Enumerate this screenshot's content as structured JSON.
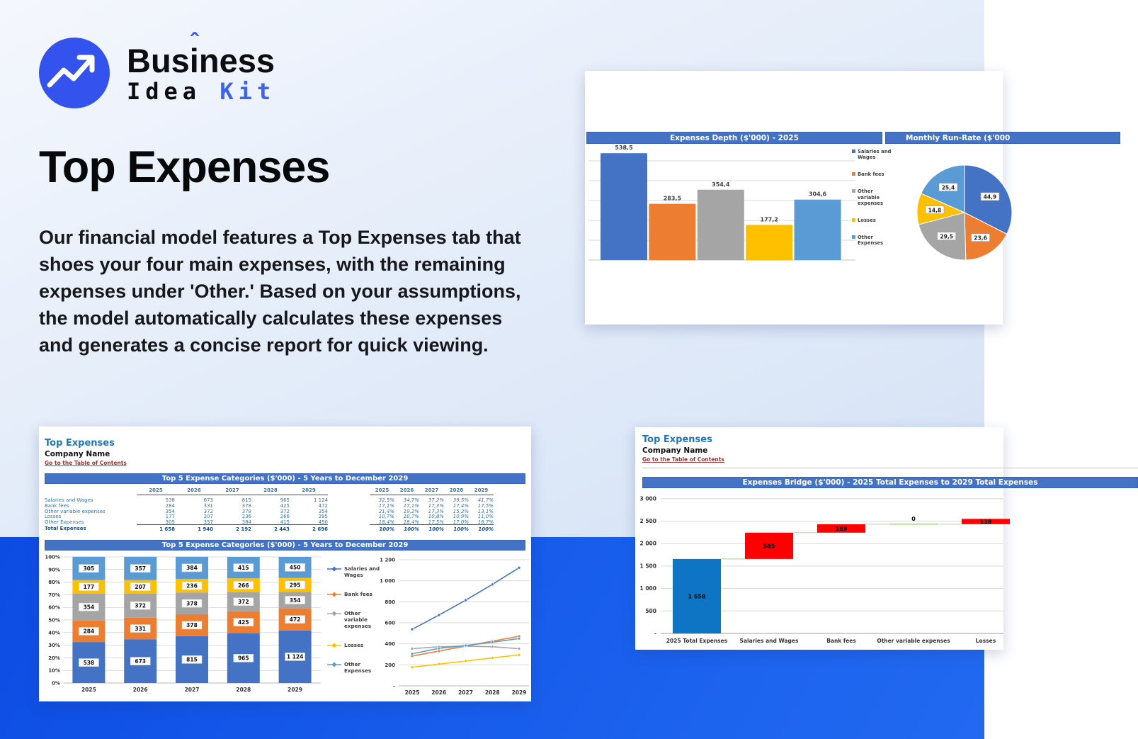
{
  "logo": {
    "word1_a": "Bus",
    "word1_i": "i",
    "word1_caret": "ˆ",
    "word1_b": "ness",
    "word2": "Idea",
    "word3": "Kit"
  },
  "hero": {
    "title": "Top Expenses",
    "description": "Our financial model features a Top Expenses tab that shoes your four main expenses, with the remaining expenses under 'Other.' Based on your assumptions, the model automatically calculates these expenses and generates a concise report for quick viewing."
  },
  "sheet_common": {
    "title": "Top Expenses",
    "company": "Company Name",
    "link": "Go to the Table of Contents"
  },
  "panel_depth": {
    "header_left": "Expenses Depth ($'000) - 2025",
    "header_right": "Monthly Run-Rate ($'000"
  },
  "panel_top5": {
    "table_header": "Top 5 Expense Categories ($'000) - 5 Years to December 2029",
    "chart_header": "Top 5 Expense Categories ($'000) - 5 Years to December 2029"
  },
  "panel_bridge": {
    "chart_header": "Expenses Bridge ($'000) - 2025 Total Expenses to 2029 Total Expenses"
  },
  "series": {
    "names": [
      "Salaries and Wages",
      "Bank fees",
      "Other variable expenses",
      "Losses",
      "Other Expenses"
    ],
    "colors": [
      "#4472c4",
      "#ed7d31",
      "#a5a5a5",
      "#ffc000",
      "#5b9bd5"
    ]
  },
  "waterfall_colors": {
    "total": "#0e74c4",
    "increase": "#fe0000",
    "zero": "#c9e4b5"
  },
  "table": {
    "years": [
      "2025",
      "2026",
      "2027",
      "2028",
      "2029"
    ],
    "rows": [
      {
        "label": "Salaries and Wages",
        "values": [
          "538",
          "673",
          "815",
          "965",
          "1 124"
        ],
        "pct": [
          "32,5%",
          "34,7%",
          "37,2%",
          "39,5%",
          "41,7%"
        ]
      },
      {
        "label": "Bank fees",
        "values": [
          "284",
          "331",
          "378",
          "425",
          "472"
        ],
        "pct": [
          "17,1%",
          "17,1%",
          "17,3%",
          "17,4%",
          "17,5%"
        ]
      },
      {
        "label": "Other variable expenses",
        "values": [
          "354",
          "372",
          "378",
          "372",
          "354"
        ],
        "pct": [
          "21,4%",
          "19,2%",
          "17,3%",
          "15,2%",
          "13,1%"
        ]
      },
      {
        "label": "Losses",
        "values": [
          "177",
          "207",
          "236",
          "266",
          "295"
        ],
        "pct": [
          "10,7%",
          "10,7%",
          "10,8%",
          "10,9%",
          "11,0%"
        ]
      },
      {
        "label": "Other Expenses",
        "values": [
          "305",
          "357",
          "384",
          "415",
          "450"
        ],
        "pct": [
          "18,4%",
          "18,4%",
          "17,5%",
          "17,0%",
          "16,7%"
        ]
      }
    ],
    "total": {
      "label": "Total Expenses",
      "values": [
        "1 658",
        "1 940",
        "2 192",
        "2 443",
        "2 696"
      ],
      "pct": [
        "100%",
        "100%",
        "100%",
        "100%",
        "100%"
      ]
    }
  },
  "chart_data": [
    {
      "id": "expenses-depth",
      "type": "bar",
      "title": "Expenses Depth ($'000) - 2025",
      "categories": [
        "Salaries and Wages",
        "Bank fees",
        "Other variable expenses",
        "Losses",
        "Other Expenses"
      ],
      "values": [
        538.5,
        283.5,
        354.4,
        177.2,
        304.6
      ],
      "labels": [
        "538,5",
        "283,5",
        "354,4",
        "177,2",
        "304,6"
      ],
      "ylim": [
        0,
        600
      ],
      "grid_step": 100,
      "legend_position": "right"
    },
    {
      "id": "monthly-run-rate",
      "type": "pie",
      "title": "Monthly Run-Rate ($'000",
      "categories": [
        "Salaries and Wages",
        "Bank fees",
        "Other variable expenses",
        "Losses",
        "Other Expenses"
      ],
      "values": [
        44.9,
        23.6,
        29.5,
        14.8,
        25.4
      ],
      "labels": [
        "44,9",
        "23,6",
        "29,5",
        "14,8",
        "25,4"
      ]
    },
    {
      "id": "top5-stacked",
      "type": "bar",
      "stacked": "percent",
      "title": "Top 5 Expense Categories ($'000) - 5 Years to December 2029",
      "categories": [
        "2025",
        "2026",
        "2027",
        "2028",
        "2029"
      ],
      "series": [
        {
          "name": "Salaries and Wages",
          "values": [
            538,
            673,
            815,
            965,
            1124
          ],
          "labels": [
            "538",
            "673",
            "815",
            "965",
            "1 124"
          ],
          "pct": [
            32.5,
            34.7,
            37.2,
            39.5,
            41.7
          ]
        },
        {
          "name": "Bank fees",
          "values": [
            284,
            331,
            378,
            425,
            472
          ],
          "labels": [
            "284",
            "331",
            "378",
            "425",
            "472"
          ],
          "pct": [
            17.1,
            17.1,
            17.3,
            17.4,
            17.5
          ]
        },
        {
          "name": "Other variable expenses",
          "values": [
            354,
            372,
            378,
            372,
            354
          ],
          "labels": [
            "354",
            "372",
            "378",
            "372",
            "354"
          ],
          "pct": [
            21.4,
            19.2,
            17.3,
            15.2,
            13.1
          ]
        },
        {
          "name": "Losses",
          "values": [
            177,
            207,
            236,
            266,
            295
          ],
          "labels": [
            "177",
            "207",
            "236",
            "266",
            "295"
          ],
          "pct": [
            10.7,
            10.7,
            10.8,
            10.9,
            11.0
          ]
        },
        {
          "name": "Other Expenses",
          "values": [
            305,
            357,
            384,
            415,
            450
          ],
          "labels": [
            "305",
            "357",
            "384",
            "415",
            "450"
          ],
          "pct": [
            18.4,
            18.4,
            17.5,
            17.0,
            16.7
          ]
        }
      ],
      "yticks": [
        "0%",
        "10%",
        "20%",
        "30%",
        "40%",
        "50%",
        "60%",
        "70%",
        "80%",
        "90%",
        "100%"
      ]
    },
    {
      "id": "top5-line",
      "type": "line",
      "categories": [
        "2025",
        "2026",
        "2027",
        "2028",
        "2029"
      ],
      "series": [
        {
          "name": "Salaries and Wages",
          "values": [
            538,
            673,
            815,
            965,
            1124
          ]
        },
        {
          "name": "Bank fees",
          "values": [
            284,
            331,
            378,
            425,
            472
          ]
        },
        {
          "name": "Other variable expenses",
          "values": [
            354,
            372,
            378,
            372,
            354
          ]
        },
        {
          "name": "Losses",
          "values": [
            177,
            207,
            236,
            266,
            295
          ]
        },
        {
          "name": "Other Expenses",
          "values": [
            305,
            357,
            384,
            415,
            450
          ]
        }
      ],
      "ylim": [
        0,
        1200
      ],
      "yticks": [
        "-",
        "200",
        "400",
        "600",
        "800",
        "1 000",
        "1 200"
      ]
    },
    {
      "id": "expenses-bridge",
      "type": "waterfall",
      "title": "Expenses Bridge ($'000) - 2025 Total Expenses to 2029 Total Expenses",
      "categories": [
        "2025 Total Expenses",
        "Salaries and Wages",
        "Bank fees",
        "Other variable expenses",
        "Losses"
      ],
      "values": [
        1658,
        585,
        189,
        0,
        118
      ],
      "labels": [
        "1 658",
        "585",
        "189",
        "0",
        "118"
      ],
      "bar_kinds": [
        "total",
        "increase",
        "increase",
        "zero",
        "increase"
      ],
      "ylim": [
        0,
        3000
      ],
      "yticks": [
        "-",
        "500",
        "1 000",
        "1 500",
        "2 000",
        "2 500",
        "3 000"
      ]
    }
  ]
}
